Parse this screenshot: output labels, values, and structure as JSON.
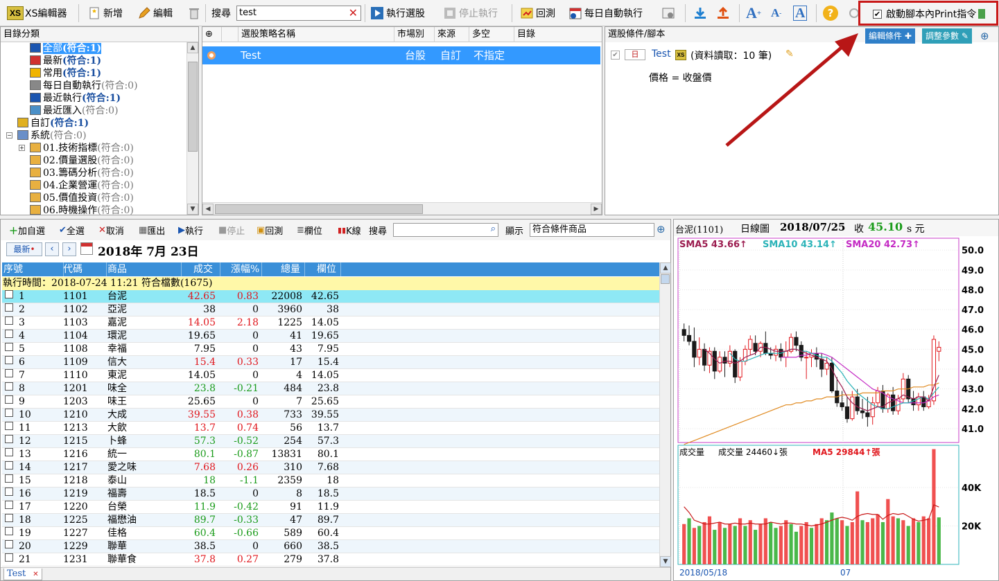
{
  "toolbar": {
    "app": "XS編輯器",
    "new": "新增",
    "edit": "編輯",
    "search_label": "搜尋",
    "search_value": "test",
    "run": "執行選股",
    "stop": "停止執行",
    "backtest": "回測",
    "daily": "每日自動執行",
    "print_option": "啟動腳本內Print指令"
  },
  "category": {
    "header": "目錄分類",
    "items": [
      {
        "label": "全部",
        "count": "(符合:1)",
        "bold": true,
        "selected": true,
        "indent": 42
      },
      {
        "label": "最新",
        "count": "(符合:1)",
        "bold": true,
        "indent": 42
      },
      {
        "label": "常用",
        "count": "(符合:1)",
        "bold": true,
        "indent": 42
      },
      {
        "label": "每日自動執行",
        "count": "(符合:0)",
        "bold": false,
        "indent": 42
      },
      {
        "label": "最近執行",
        "count": "(符合:1)",
        "bold": true,
        "indent": 42
      },
      {
        "label": "最近匯入",
        "count": "(符合:0)",
        "bold": false,
        "indent": 42
      },
      {
        "label": "自訂",
        "count": "(符合:1)",
        "bold": true,
        "indent": 24
      },
      {
        "label": "系統",
        "count": "(符合:0)",
        "bold": false,
        "indent": 24
      },
      {
        "label": "01.技術指標",
        "count": "(符合:0)",
        "bold": false,
        "indent": 42
      },
      {
        "label": "02.價量選股",
        "count": "(符合:0)",
        "bold": false,
        "indent": 42
      },
      {
        "label": "03.籌碼分析",
        "count": "(符合:0)",
        "bold": false,
        "indent": 42
      },
      {
        "label": "04.企業營運",
        "count": "(符合:0)",
        "bold": false,
        "indent": 42
      },
      {
        "label": "05.價值投資",
        "count": "(符合:0)",
        "bold": false,
        "indent": 42
      },
      {
        "label": "06.時機操作",
        "count": "(符合:0)",
        "bold": false,
        "indent": 42
      }
    ]
  },
  "strategy": {
    "headers": [
      "選股策略名稱",
      "市場別",
      "來源",
      "多空",
      "目錄"
    ],
    "rows": [
      {
        "name": "Test",
        "market": "台股",
        "source": "自訂",
        "direction": "不指定",
        "folder": ""
      }
    ]
  },
  "conditions": {
    "header": "選股條件/腳本",
    "edit_btn": "編輯條件",
    "adjust_btn": "調整參數",
    "period": "日",
    "script": "Test",
    "read": "(資料讀取：10 筆)",
    "line2": "價格 = 收盤價"
  },
  "results_toolbar": {
    "add": "加自選",
    "select_all": "全選",
    "cancel": "取消",
    "export": "匯出",
    "run": "執行",
    "stop": "停止",
    "backtest": "回測",
    "columns": "欄位",
    "kline": "K線",
    "search_label": "搜尋",
    "show_label": "顯示",
    "show_value": "符合條件商品",
    "latest": "最新",
    "date": "2018年  7月 23日"
  },
  "results": {
    "headers": [
      "序號",
      "代碼",
      "商品",
      "成交",
      "漲幅%",
      "總量",
      "欄位"
    ],
    "exec_info": "執行時間：2018-07-24 11:21  符合檔數(1675)",
    "rows": [
      [
        "1",
        "1101",
        "台泥",
        "42.65",
        "0.83",
        "22008",
        "42.65",
        "r"
      ],
      [
        "2",
        "1102",
        "亞泥",
        "38",
        "0",
        "3960",
        "38",
        "k"
      ],
      [
        "3",
        "1103",
        "嘉泥",
        "14.05",
        "2.18",
        "1225",
        "14.05",
        "r"
      ],
      [
        "4",
        "1104",
        "環泥",
        "19.65",
        "0",
        "41",
        "19.65",
        "k"
      ],
      [
        "5",
        "1108",
        "幸福",
        "7.95",
        "0",
        "43",
        "7.95",
        "k"
      ],
      [
        "6",
        "1109",
        "信大",
        "15.4",
        "0.33",
        "17",
        "15.4",
        "r"
      ],
      [
        "7",
        "1110",
        "東泥",
        "14.05",
        "0",
        "4",
        "14.05",
        "k"
      ],
      [
        "8",
        "1201",
        "味全",
        "23.8",
        "-0.21",
        "484",
        "23.8",
        "g"
      ],
      [
        "9",
        "1203",
        "味王",
        "25.65",
        "0",
        "7",
        "25.65",
        "k"
      ],
      [
        "10",
        "1210",
        "大成",
        "39.55",
        "0.38",
        "733",
        "39.55",
        "r"
      ],
      [
        "11",
        "1213",
        "大飲",
        "13.7",
        "0.74",
        "56",
        "13.7",
        "r"
      ],
      [
        "12",
        "1215",
        "卜蜂",
        "57.3",
        "-0.52",
        "254",
        "57.3",
        "g"
      ],
      [
        "13",
        "1216",
        "統一",
        "80.1",
        "-0.87",
        "13831",
        "80.1",
        "g"
      ],
      [
        "14",
        "1217",
        "愛之味",
        "7.68",
        "0.26",
        "310",
        "7.68",
        "r"
      ],
      [
        "15",
        "1218",
        "泰山",
        "18",
        "-1.1",
        "2359",
        "18",
        "g"
      ],
      [
        "16",
        "1219",
        "福壽",
        "18.5",
        "0",
        "8",
        "18.5",
        "k"
      ],
      [
        "17",
        "1220",
        "台榮",
        "11.9",
        "-0.42",
        "91",
        "11.9",
        "g"
      ],
      [
        "18",
        "1225",
        "福懋油",
        "89.7",
        "-0.33",
        "47",
        "89.7",
        "g"
      ],
      [
        "19",
        "1227",
        "佳格",
        "60.4",
        "-0.66",
        "589",
        "60.4",
        "g"
      ],
      [
        "20",
        "1229",
        "聯華",
        "38.5",
        "0",
        "660",
        "38.5",
        "k"
      ],
      [
        "21",
        "1231",
        "聯華食",
        "37.8",
        "0.27",
        "279",
        "37.8",
        "r"
      ]
    ],
    "tab": "Test"
  },
  "chart_header": {
    "symbol": "台泥(1101)",
    "period": "日線圖",
    "date": "2018/07/25",
    "close_label": "收",
    "close": "45.10",
    "unit": "s 元"
  },
  "chart_data": [
    {
      "type": "line",
      "title": "",
      "legend": [
        {
          "name": "SMA5",
          "value": "43.66↑",
          "color": "#9b1c4f"
        },
        {
          "name": "SMA10",
          "value": "43.14↑",
          "color": "#2bb3b8"
        },
        {
          "name": "SMA20",
          "value": "42.73↑",
          "color": "#c42ac4"
        }
      ],
      "y_ticks": [
        "50.0",
        "49.0",
        "48.0",
        "47.0",
        "46.0",
        "45.0",
        "44.0",
        "43.0",
        "42.0",
        "41.0"
      ],
      "ylim": [
        40.3,
        50.6
      ],
      "x_labels": [
        "2018/05/18",
        "07"
      ],
      "candles": [
        [
          46.0,
          46.3,
          45.4,
          45.7
        ],
        [
          45.7,
          46.2,
          45.2,
          45.4
        ],
        [
          45.4,
          46.1,
          44.1,
          44.6
        ],
        [
          44.6,
          45.6,
          44.2,
          45.0
        ],
        [
          45.0,
          45.3,
          43.9,
          44.2
        ],
        [
          44.2,
          45.1,
          43.8,
          44.9
        ],
        [
          44.9,
          45.1,
          43.5,
          43.9
        ],
        [
          43.9,
          44.9,
          43.8,
          44.6
        ],
        [
          44.6,
          44.9,
          43.6,
          44.3
        ],
        [
          44.3,
          45.2,
          44.1,
          44.9
        ],
        [
          44.9,
          45.0,
          43.3,
          43.6
        ],
        [
          43.6,
          44.6,
          43.4,
          44.4
        ],
        [
          44.4,
          45.2,
          44.2,
          45.0
        ],
        [
          45.0,
          45.7,
          44.7,
          45.5
        ],
        [
          45.3,
          45.7,
          44.7,
          44.9
        ],
        [
          44.9,
          45.4,
          44.6,
          45.3
        ],
        [
          45.3,
          45.9,
          44.7,
          44.8
        ],
        [
          44.8,
          45.1,
          44.5,
          44.7
        ],
        [
          44.7,
          45.2,
          44.4,
          45.0
        ],
        [
          45.0,
          45.3,
          44.4,
          44.6
        ],
        [
          44.6,
          45.4,
          44.1,
          44.9
        ],
        [
          44.9,
          45.8,
          44.8,
          45.6
        ],
        [
          45.6,
          45.9,
          44.9,
          45.2
        ],
        [
          45.2,
          45.4,
          44.4,
          44.6
        ],
        [
          44.6,
          44.9,
          43.5,
          44.6
        ],
        [
          44.6,
          45.0,
          44.1,
          44.8
        ],
        [
          44.8,
          45.1,
          44.1,
          44.5
        ],
        [
          44.5,
          44.8,
          43.6,
          44.0
        ],
        [
          44.0,
          44.6,
          43.7,
          44.3
        ],
        [
          44.3,
          44.6,
          42.8,
          42.9
        ],
        [
          42.9,
          43.6,
          42.1,
          42.3
        ],
        [
          42.3,
          42.9,
          41.9,
          42.1
        ],
        [
          42.1,
          42.6,
          41.3,
          41.5
        ],
        [
          41.5,
          42.9,
          41.4,
          42.6
        ],
        [
          42.6,
          43.0,
          41.7,
          41.9
        ],
        [
          41.9,
          42.5,
          41.5,
          41.8
        ],
        [
          41.8,
          42.6,
          41.1,
          41.6
        ],
        [
          41.6,
          42.6,
          41.2,
          42.3
        ],
        [
          42.3,
          43.1,
          42.1,
          42.9
        ],
        [
          42.9,
          43.2,
          41.8,
          42.0
        ],
        [
          42.0,
          42.8,
          41.8,
          42.7
        ],
        [
          42.7,
          43.1,
          41.7,
          41.9
        ],
        [
          41.9,
          42.7,
          41.7,
          42.5
        ],
        [
          42.5,
          43.8,
          42.3,
          43.5
        ],
        [
          43.5,
          43.7,
          42.3,
          42.5
        ],
        [
          42.5,
          42.9,
          41.9,
          42.2
        ],
        [
          42.2,
          42.8,
          41.9,
          42.6
        ],
        [
          42.6,
          42.9,
          41.9,
          42.1
        ],
        [
          42.1,
          42.7,
          42.0,
          42.4
        ],
        [
          42.4,
          45.7,
          42.2,
          45.5
        ],
        [
          44.9,
          45.4,
          44.4,
          45.1
        ]
      ],
      "sma5": [
        null,
        null,
        null,
        null,
        45.0,
        44.8,
        44.5,
        44.3,
        44.4,
        44.4,
        44.3,
        44.4,
        44.6,
        44.7,
        44.8,
        45.1,
        45.1,
        45.0,
        44.9,
        44.9,
        44.9,
        45.0,
        45.0,
        44.9,
        44.8,
        44.7,
        44.6,
        44.5,
        44.4,
        44.0,
        43.5,
        43.1,
        42.6,
        42.3,
        42.1,
        42.0,
        41.9,
        42.0,
        42.1,
        42.1,
        42.3,
        42.4,
        42.5,
        42.7,
        42.6,
        42.5,
        42.6,
        42.6,
        42.4,
        43.1,
        43.7
      ],
      "sma10": [
        null,
        null,
        null,
        null,
        null,
        null,
        null,
        null,
        null,
        44.8,
        44.5,
        44.4,
        44.4,
        44.5,
        44.6,
        44.7,
        44.8,
        44.8,
        44.8,
        44.8,
        44.9,
        45.0,
        45.0,
        44.9,
        44.9,
        44.8,
        44.7,
        44.6,
        44.6,
        44.4,
        44.1,
        43.8,
        43.4,
        43.1,
        42.8,
        42.6,
        42.4,
        42.2,
        42.1,
        42.0,
        42.0,
        42.1,
        42.2,
        42.3,
        42.3,
        42.4,
        42.5,
        42.6,
        42.5,
        42.8,
        43.1
      ],
      "sma20": [
        null,
        null,
        null,
        null,
        null,
        null,
        null,
        null,
        null,
        null,
        null,
        null,
        null,
        null,
        null,
        null,
        null,
        null,
        null,
        44.6,
        44.6,
        44.6,
        44.6,
        44.7,
        44.7,
        44.8,
        44.8,
        44.8,
        44.7,
        44.6,
        44.4,
        44.2,
        44.0,
        43.8,
        43.6,
        43.4,
        43.2,
        43.0,
        42.9,
        42.8,
        42.6,
        42.5,
        42.4,
        42.3,
        42.3,
        42.3,
        42.3,
        42.3,
        42.4,
        42.6,
        42.7
      ],
      "long_ma": [
        40.2,
        40.3,
        40.4,
        40.5,
        40.6,
        40.7,
        40.8,
        40.9,
        41.0,
        41.1,
        41.2,
        41.3,
        41.4,
        41.5,
        41.6,
        41.7,
        41.8,
        41.9,
        42.0,
        42.1,
        42.2,
        42.2,
        42.3,
        42.3,
        42.4,
        42.4,
        42.5,
        42.5,
        42.6,
        42.6,
        42.6,
        42.7,
        42.7,
        42.7,
        42.7,
        42.8,
        42.8,
        42.8,
        42.8,
        42.9,
        42.9,
        42.9,
        43.0,
        43.0,
        43.0,
        43.1,
        43.1,
        43.1,
        43.2,
        43.2,
        43.3
      ]
    },
    {
      "type": "bar",
      "legend": [
        {
          "name": "成交量",
          "value": "",
          "color": "#000"
        },
        {
          "name": "成交量",
          "value": "24460↓張",
          "color": "#000"
        },
        {
          "name": "MA5",
          "value": "29844↑張",
          "color": "#e0161c"
        }
      ],
      "y_ticks": [
        "40K",
        "20K"
      ],
      "ylim": [
        0,
        62000
      ],
      "values": [
        21000,
        24000,
        19000,
        20000,
        22000,
        25000,
        18000,
        22000,
        19000,
        21000,
        20000,
        24000,
        20000,
        23000,
        18000,
        21000,
        24000,
        22000,
        19000,
        20000,
        23000,
        21000,
        17000,
        20000,
        22000,
        19000,
        21000,
        24000,
        23000,
        27000,
        24000,
        23000,
        20000,
        22000,
        38000,
        23000,
        22000,
        24000,
        26000,
        22000,
        34000,
        25000,
        24000,
        23000,
        20000,
        24000,
        22000,
        25000,
        24000,
        60000,
        24460
      ],
      "ma5": [
        30000,
        27000,
        23000,
        22000,
        21000,
        21000,
        21500,
        22000,
        21000,
        21000,
        21500,
        21000,
        21000,
        21500,
        21000,
        21000,
        21000,
        22000,
        21500,
        21000,
        21500,
        21500,
        21000,
        21000,
        20500,
        20000,
        20500,
        21000,
        22000,
        23000,
        24000,
        24500,
        24000,
        23000,
        25000,
        26000,
        26500,
        26000,
        26000,
        23500,
        25500,
        26500,
        26000,
        26500,
        25000,
        23500,
        22500,
        23000,
        23500,
        31000,
        29844
      ],
      "colors": [
        "r",
        "g",
        "r",
        "g",
        "r",
        "r",
        "g",
        "r",
        "g",
        "r",
        "g",
        "r",
        "g",
        "r",
        "g",
        "r",
        "r",
        "g",
        "g",
        "r",
        "r",
        "g",
        "g",
        "r",
        "r",
        "g",
        "r",
        "r",
        "g",
        "g",
        "g",
        "r",
        "g",
        "r",
        "r",
        "g",
        "r",
        "r",
        "r",
        "g",
        "r",
        "r",
        "g",
        "r",
        "g",
        "r",
        "g",
        "r",
        "r",
        "r",
        "g"
      ]
    }
  ]
}
